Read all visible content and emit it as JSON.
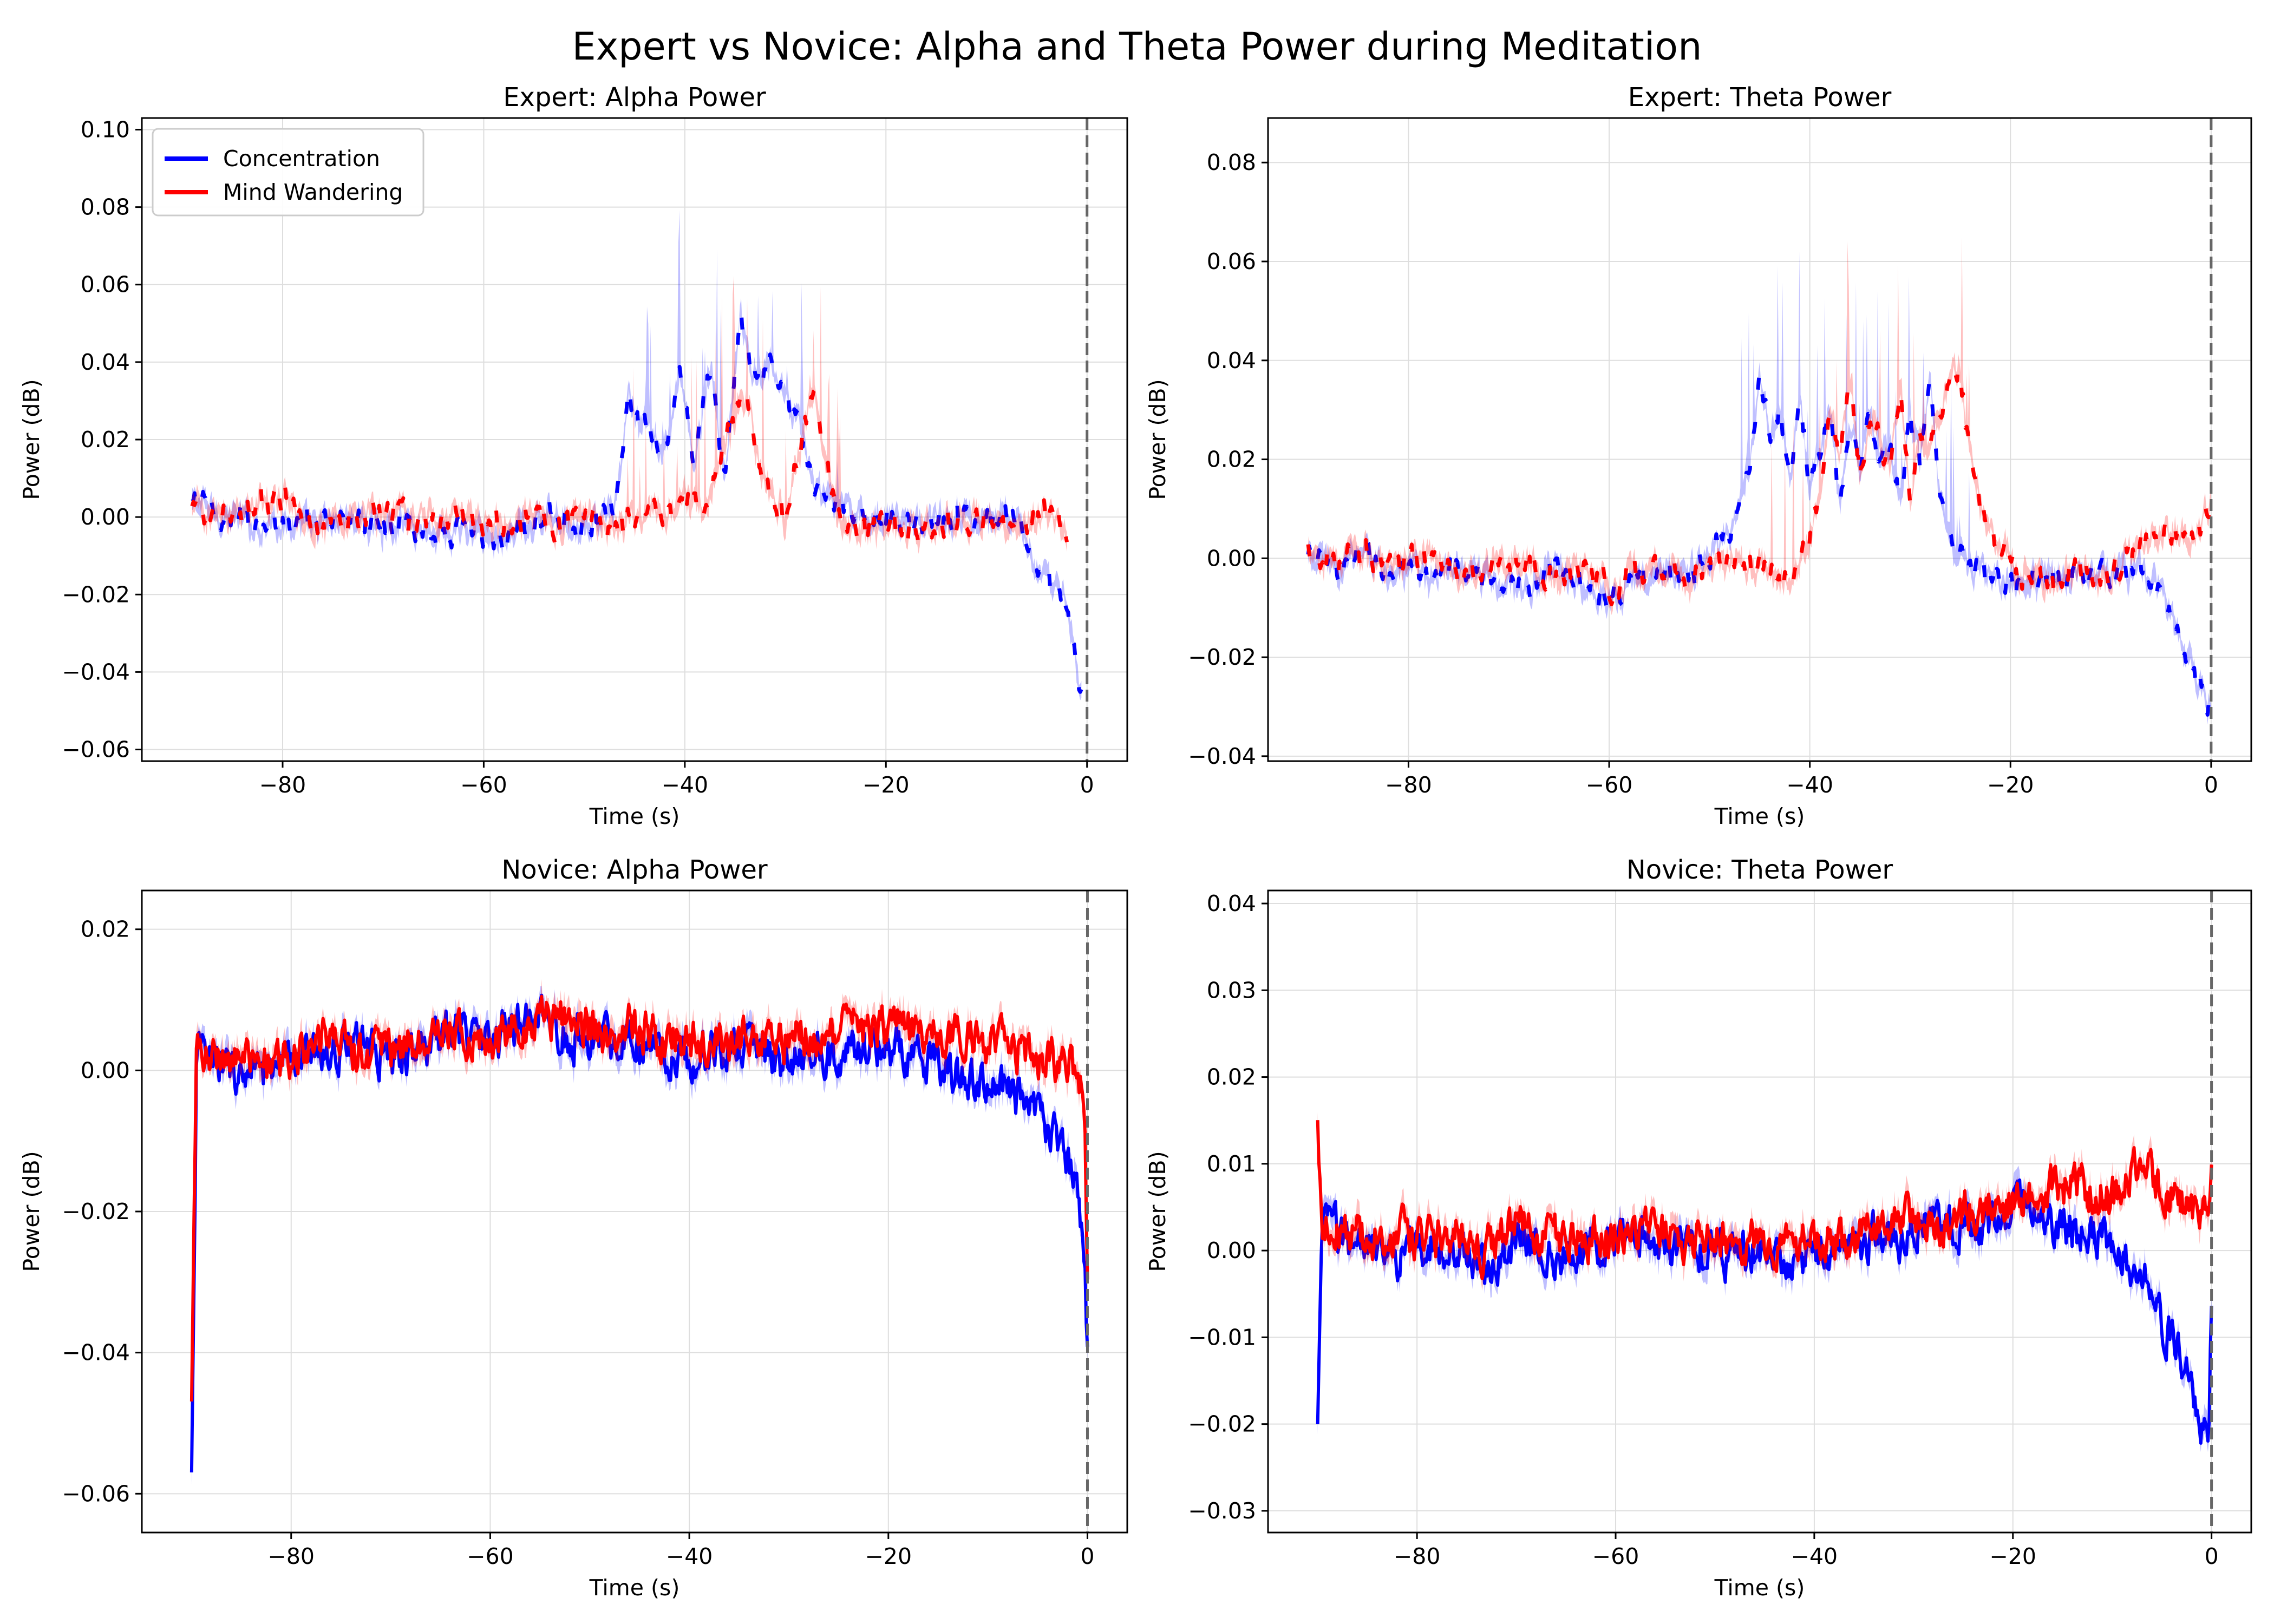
{
  "figure": {
    "title": "Expert vs Novice: Alpha and Theta Power during Meditation"
  },
  "legend": [
    {
      "label": "Concentration",
      "color": "#0000ff"
    },
    {
      "label": "Mind Wandering",
      "color": "#ff0000"
    }
  ],
  "colors": {
    "concentration": "#0000ff",
    "mind_wandering": "#ff0000",
    "band_concentration": "rgba(0,0,255,0.25)",
    "band_mind_wandering": "rgba(255,0,0,0.25)",
    "grid": "#dedede",
    "event_line": "#666666"
  },
  "chart_data": [
    {
      "type": "line",
      "title": "Expert: Alpha Power",
      "xlabel": "Time (s)",
      "ylabel": "Power (dB)",
      "xlim": [
        -94,
        4
      ],
      "ylim": [
        -0.063,
        0.103
      ],
      "xticks": [
        -80,
        -60,
        -40,
        -20,
        0
      ],
      "xtick_labels": [
        "−80",
        "−60",
        "−40",
        "−20",
        "0"
      ],
      "yticks": [
        -0.06,
        -0.04,
        -0.02,
        0.0,
        0.02,
        0.04,
        0.06,
        0.08,
        0.1
      ],
      "ytick_labels": [
        "−0.06",
        "−0.04",
        "−0.02",
        "0.00",
        "0.02",
        "0.04",
        "0.06",
        "0.08",
        "0.10"
      ],
      "grid": true,
      "legend": "upper-left",
      "event_line_x": 0,
      "series": [
        {
          "name": "Concentration",
          "x": [
            -89,
            -86,
            -83,
            -80,
            -77,
            -74,
            -71,
            -68,
            -65,
            -62,
            -59,
            -56,
            -53,
            -50,
            -47,
            -45.5,
            -44.5,
            -43.5,
            -42,
            -40.5,
            -39,
            -37.5,
            -36,
            -34.5,
            -33,
            -31.5,
            -30,
            -28.5,
            -27,
            -25,
            -22,
            -19,
            -16,
            -13,
            -10,
            -7,
            -4,
            -3,
            -2,
            -0.5
          ],
          "y": [
            0.004,
            0.001,
            -0.002,
            -0.001,
            -0.003,
            0.0,
            -0.002,
            -0.001,
            -0.004,
            -0.003,
            -0.006,
            -0.002,
            0.0,
            -0.001,
            0.0,
            0.03,
            0.022,
            0.024,
            0.016,
            0.038,
            0.012,
            0.04,
            0.01,
            0.05,
            0.035,
            0.041,
            0.03,
            0.025,
            0.005,
            0.002,
            0.001,
            0.0,
            -0.002,
            0.001,
            -0.001,
            0.002,
            -0.018,
            -0.02,
            -0.022,
            -0.045
          ]
        },
        {
          "name": "Mind Wandering",
          "x": [
            -89,
            -86,
            -83,
            -80,
            -77,
            -74,
            -71,
            -68,
            -65,
            -62,
            -59,
            -56,
            -53,
            -50,
            -47,
            -44,
            -42,
            -40,
            -38,
            -36,
            -34,
            -32,
            -30,
            -28,
            -27,
            -25,
            -22,
            -19,
            -16,
            -13,
            -10,
            -7,
            -4,
            -2
          ],
          "y": [
            0.002,
            0.001,
            0.002,
            0.004,
            -0.002,
            -0.001,
            0.001,
            0.0,
            -0.001,
            0.001,
            -0.002,
            0.0,
            -0.003,
            0.001,
            -0.002,
            0.002,
            0.001,
            0.004,
            0.0,
            0.02,
            0.03,
            0.01,
            0.0,
            0.024,
            0.033,
            0.0,
            -0.003,
            -0.002,
            -0.003,
            -0.002,
            -0.001,
            -0.002,
            0.001,
            -0.002
          ]
        }
      ]
    },
    {
      "type": "line",
      "title": "Expert: Theta Power",
      "xlabel": "Time (s)",
      "ylabel": "Power (dB)",
      "xlim": [
        -94,
        4
      ],
      "ylim": [
        -0.041,
        0.089
      ],
      "xticks": [
        -80,
        -60,
        -40,
        -20,
        0
      ],
      "xtick_labels": [
        "−80",
        "−60",
        "−40",
        "−20",
        "0"
      ],
      "yticks": [
        -0.04,
        -0.02,
        0.0,
        0.02,
        0.04,
        0.06,
        0.08
      ],
      "ytick_labels": [
        "−0.04",
        "−0.02",
        "0.00",
        "0.02",
        "0.04",
        "0.06",
        "0.08"
      ],
      "grid": true,
      "event_line_x": 0,
      "series": [
        {
          "name": "Concentration",
          "x": [
            -90,
            -87,
            -84,
            -81,
            -78,
            -75,
            -72,
            -69,
            -66,
            -63,
            -60,
            -57,
            -54,
            -51,
            -48,
            -46,
            -45,
            -44,
            -43,
            -42,
            -41,
            -40,
            -39,
            -38,
            -37,
            -36,
            -35,
            -34,
            -33,
            -32,
            -31,
            -30,
            -29,
            -28,
            -27,
            -26,
            -24,
            -22,
            -19,
            -16,
            -13,
            -10,
            -7,
            -5,
            -3,
            -1,
            0
          ],
          "y": [
            0.0,
            -0.002,
            0.001,
            -0.004,
            -0.003,
            -0.002,
            -0.004,
            -0.006,
            -0.003,
            -0.004,
            -0.007,
            -0.005,
            -0.003,
            -0.002,
            0.005,
            0.02,
            0.035,
            0.025,
            0.03,
            0.018,
            0.032,
            0.014,
            0.022,
            0.03,
            0.01,
            0.028,
            0.018,
            0.03,
            0.02,
            0.024,
            0.012,
            0.03,
            0.018,
            0.036,
            0.01,
            0.004,
            -0.002,
            -0.004,
            -0.005,
            -0.004,
            -0.003,
            -0.004,
            -0.002,
            -0.008,
            -0.018,
            -0.026,
            -0.03
          ]
        },
        {
          "name": "Mind Wandering",
          "x": [
            -90,
            -87,
            -84,
            -81,
            -78,
            -75,
            -72,
            -69,
            -66,
            -63,
            -60,
            -57,
            -54,
            -51,
            -48,
            -45,
            -42,
            -40,
            -39,
            -38,
            -37,
            -36,
            -35,
            -34,
            -33,
            -32,
            -31,
            -30,
            -29,
            -28,
            -27,
            -26,
            -25,
            -24,
            -23,
            -21,
            -19,
            -16,
            -13,
            -10,
            -7,
            -5,
            -3,
            -1,
            0
          ],
          "y": [
            0.002,
            -0.001,
            0.001,
            -0.002,
            0.001,
            -0.003,
            -0.002,
            0.0,
            -0.004,
            -0.002,
            -0.005,
            -0.003,
            -0.002,
            -0.004,
            -0.001,
            -0.002,
            -0.004,
            0.005,
            0.012,
            0.032,
            0.02,
            0.038,
            0.015,
            0.03,
            0.025,
            0.018,
            0.035,
            0.012,
            0.028,
            0.02,
            0.03,
            0.035,
            0.039,
            0.02,
            0.012,
            0.002,
            -0.004,
            -0.005,
            -0.003,
            -0.004,
            0.003,
            0.004,
            0.006,
            0.005,
            0.012
          ]
        }
      ]
    },
    {
      "type": "line",
      "title": "Novice: Alpha Power",
      "xlabel": "Time (s)",
      "ylabel": "Power (dB)",
      "xlim": [
        -95,
        4
      ],
      "ylim": [
        -0.0655,
        0.0255
      ],
      "xticks": [
        -80,
        -60,
        -40,
        -20,
        0
      ],
      "xtick_labels": [
        "−80",
        "−60",
        "−40",
        "−20",
        "0"
      ],
      "yticks": [
        -0.06,
        -0.04,
        -0.02,
        0.0,
        0.02
      ],
      "ytick_labels": [
        "−0.06",
        "−0.04",
        "−0.02",
        "0.00",
        "0.02"
      ],
      "grid": true,
      "event_line_x": 0,
      "series": [
        {
          "name": "Concentration",
          "x": [
            -90,
            -89.5,
            -88,
            -85,
            -82,
            -79,
            -76,
            -73,
            -70,
            -67,
            -64,
            -61,
            -58,
            -55,
            -52,
            -49,
            -46,
            -43,
            -40,
            -37,
            -34,
            -31,
            -28,
            -25,
            -22,
            -19,
            -16,
            -13,
            -10,
            -7,
            -5,
            -3,
            -2,
            -1,
            -0.3,
            0
          ],
          "y": [
            -0.058,
            0.003,
            0.001,
            0.0,
            -0.001,
            0.002,
            0.003,
            0.004,
            0.002,
            0.003,
            0.005,
            0.004,
            0.006,
            0.007,
            0.005,
            0.004,
            0.005,
            0.003,
            0.002,
            0.003,
            0.004,
            0.001,
            0.003,
            0.002,
            0.003,
            0.003,
            0.001,
            -0.001,
            -0.002,
            -0.004,
            -0.007,
            -0.01,
            -0.013,
            -0.016,
            -0.025,
            -0.04
          ]
        },
        {
          "name": "Mind Wandering",
          "x": [
            -90,
            -89.5,
            -88,
            -85,
            -82,
            -79,
            -76,
            -73,
            -70,
            -67,
            -64,
            -61,
            -58,
            -55,
            -52,
            -49,
            -46,
            -43,
            -40,
            -37,
            -34,
            -31,
            -28,
            -25,
            -22,
            -19,
            -16,
            -13,
            -10,
            -7,
            -5,
            -3,
            -2,
            -1,
            -0.3,
            0
          ],
          "y": [
            -0.048,
            0.004,
            0.002,
            0.001,
            0.001,
            0.003,
            0.004,
            0.003,
            0.003,
            0.004,
            0.006,
            0.005,
            0.006,
            0.008,
            0.007,
            0.005,
            0.006,
            0.005,
            0.004,
            0.004,
            0.005,
            0.004,
            0.005,
            0.005,
            0.006,
            0.006,
            0.005,
            0.006,
            0.004,
            0.003,
            0.002,
            0.001,
            0.002,
            0.0,
            -0.005,
            -0.03
          ]
        }
      ]
    },
    {
      "type": "line",
      "title": "Novice: Theta Power",
      "xlabel": "Time (s)",
      "ylabel": "Power (dB)",
      "xlim": [
        -95,
        4
      ],
      "ylim": [
        -0.0325,
        0.0415
      ],
      "xticks": [
        -80,
        -60,
        -40,
        -20,
        0
      ],
      "xtick_labels": [
        "−80",
        "−60",
        "−40",
        "−20",
        "0"
      ],
      "yticks": [
        -0.03,
        -0.02,
        -0.01,
        0.0,
        0.01,
        0.02,
        0.03,
        0.04
      ],
      "ytick_labels": [
        "−0.03",
        "−0.02",
        "−0.01",
        "0.00",
        "0.01",
        "0.02",
        "0.03",
        "0.04"
      ],
      "grid": true,
      "event_line_x": 0,
      "series": [
        {
          "name": "Concentration",
          "x": [
            -90,
            -89.5,
            -88,
            -85,
            -82,
            -79,
            -76,
            -73,
            -70,
            -67,
            -64,
            -61,
            -58,
            -55,
            -52,
            -49,
            -46,
            -43,
            -40,
            -37,
            -34,
            -31,
            -28,
            -25,
            -22,
            -19,
            -16,
            -13,
            -10,
            -7,
            -5,
            -3,
            -2,
            -1,
            -0.3,
            0
          ],
          "y": [
            -0.021,
            0.004,
            0.002,
            0.0,
            -0.001,
            0.001,
            0.0,
            -0.002,
            0.001,
            0.0,
            -0.001,
            0.001,
            0.002,
            0.0,
            0.001,
            -0.001,
            0.0,
            -0.002,
            -0.001,
            0.0,
            0.002,
            0.001,
            0.004,
            0.002,
            0.003,
            0.006,
            0.003,
            0.002,
            0.001,
            -0.003,
            -0.008,
            -0.013,
            -0.016,
            -0.02,
            -0.022,
            -0.007
          ]
        },
        {
          "name": "Mind Wandering",
          "x": [
            -90,
            -89.5,
            -88,
            -85,
            -82,
            -79,
            -76,
            -73,
            -70,
            -67,
            -64,
            -61,
            -58,
            -55,
            -52,
            -49,
            -46,
            -43,
            -40,
            -37,
            -34,
            -31,
            -28,
            -25,
            -22,
            -19,
            -16,
            -13,
            -10,
            -7,
            -5,
            -3,
            -2,
            -1,
            -0.3,
            0
          ],
          "y": [
            0.014,
            0.004,
            0.003,
            0.001,
            0.002,
            0.001,
            0.002,
            0.0,
            0.003,
            0.002,
            0.001,
            0.002,
            0.003,
            0.002,
            0.001,
            0.002,
            0.001,
            0.0,
            0.002,
            0.001,
            0.003,
            0.004,
            0.003,
            0.004,
            0.005,
            0.006,
            0.007,
            0.008,
            0.006,
            0.01,
            0.007,
            0.006,
            0.004,
            0.005,
            0.003,
            0.012
          ]
        }
      ]
    }
  ]
}
